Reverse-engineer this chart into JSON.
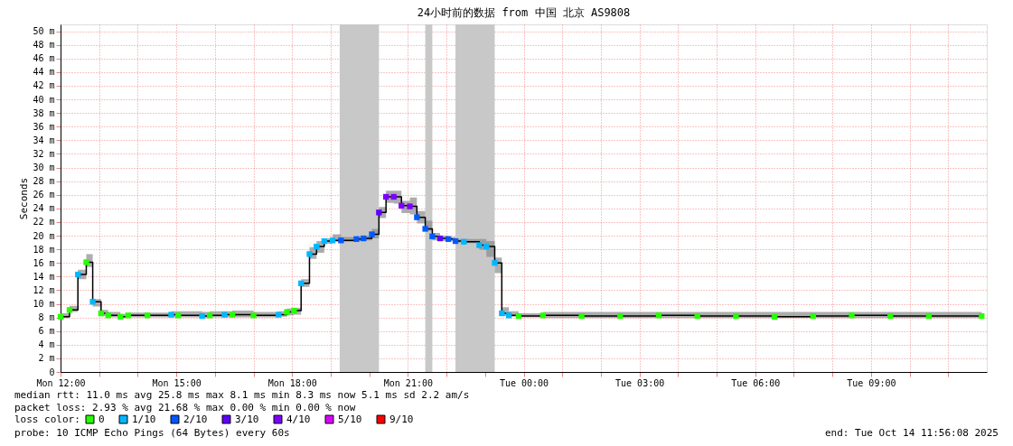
{
  "chart_data": {
    "type": "step",
    "title": "24小时前的数据 from 中国 北京 AS9808",
    "ylabel": "Seconds",
    "legend_title": "loss color:",
    "legend": "bottom",
    "grid": true,
    "x": [
      "2025-10-13T12:00",
      "2025-10-13T12:14",
      "2025-10-13T12:27",
      "2025-10-13T12:40",
      "2025-10-13T12:50",
      "2025-10-13T13:03",
      "2025-10-13T13:14",
      "2025-10-13T13:33",
      "2025-10-13T13:45",
      "2025-10-13T14:15",
      "2025-10-13T14:52",
      "2025-10-13T15:03",
      "2025-10-13T15:40",
      "2025-10-13T15:52",
      "2025-10-13T16:15",
      "2025-10-13T16:27",
      "2025-10-13T17:00",
      "2025-10-13T17:39",
      "2025-10-13T17:52",
      "2025-10-13T18:03",
      "2025-10-13T18:14",
      "2025-10-13T18:27",
      "2025-10-13T18:38",
      "2025-10-13T18:50",
      "2025-10-13T19:03",
      "2025-10-13T19:16",
      "2025-10-13T19:40",
      "2025-10-13T19:51",
      "2025-10-13T20:04",
      "2025-10-13T20:15",
      "2025-10-13T20:26",
      "2025-10-13T20:38",
      "2025-10-13T20:50",
      "2025-10-13T21:03",
      "2025-10-13T21:14",
      "2025-10-13T21:27",
      "2025-10-13T21:38",
      "2025-10-13T21:50",
      "2025-10-13T22:03",
      "2025-10-13T22:14",
      "2025-10-13T22:27",
      "2025-10-13T22:51",
      "2025-10-13T23:02",
      "2025-10-13T23:15",
      "2025-10-13T23:26",
      "2025-10-13T23:37",
      "2025-10-13T23:52",
      "2025-10-14T00:30",
      "2025-10-14T01:30",
      "2025-10-14T02:30",
      "2025-10-14T03:30",
      "2025-10-14T04:30",
      "2025-10-14T05:30",
      "2025-10-14T06:30",
      "2025-10-14T07:30",
      "2025-10-14T08:30",
      "2025-10-14T09:30",
      "2025-10-14T10:30",
      "2025-10-14T11:52"
    ],
    "series": [
      {
        "color": "#000000",
        "values": [
          8.1,
          9.1,
          14.3,
          16.1,
          10.3,
          8.6,
          8.3,
          8.1,
          8.3,
          8.3,
          8.4,
          8.3,
          8.2,
          8.3,
          8.4,
          8.4,
          8.3,
          8.4,
          8.8,
          9.0,
          13.0,
          17.3,
          18.4,
          19.2,
          19.3,
          19.3,
          19.5,
          19.6,
          20.2,
          23.4,
          25.7,
          25.7,
          24.4,
          24.3,
          22.7,
          21.0,
          19.9,
          19.6,
          19.5,
          19.2,
          19.1,
          18.6,
          18.4,
          16.0,
          8.6,
          8.3,
          8.2,
          8.3,
          8.2,
          8.2,
          8.3,
          8.2,
          8.2,
          8.1,
          8.2,
          8.3,
          8.2,
          8.2,
          8.2
        ],
        "lower": [
          7.9,
          8.8,
          13.6,
          15.4,
          9.6,
          8.2,
          8.0,
          7.9,
          8.0,
          8.0,
          8.0,
          8.0,
          7.9,
          8.0,
          8.0,
          8.0,
          8.0,
          8.1,
          8.3,
          8.4,
          12.5,
          16.6,
          17.5,
          18.8,
          19.1,
          19.1,
          19.2,
          19.3,
          19.6,
          22.6,
          24.8,
          24.7,
          23.3,
          23.1,
          21.8,
          20.7,
          19.3,
          19.2,
          19.2,
          19.0,
          18.9,
          17.9,
          16.9,
          14.5,
          8.2,
          8.1,
          8.0,
          7.9,
          7.9,
          7.9,
          7.9,
          7.9,
          7.9,
          7.9,
          7.9,
          7.9,
          7.9,
          7.9,
          7.9
        ],
        "upper": [
          8.6,
          9.7,
          15.0,
          17.3,
          10.7,
          9.1,
          8.8,
          8.5,
          8.7,
          8.7,
          8.9,
          8.9,
          8.8,
          8.9,
          8.9,
          9.0,
          8.8,
          8.9,
          9.3,
          9.4,
          13.6,
          18.3,
          19.2,
          19.6,
          20.2,
          19.8,
          19.9,
          20.0,
          21.0,
          24.2,
          26.6,
          26.6,
          25.1,
          25.6,
          23.6,
          22.2,
          20.4,
          20.0,
          19.8,
          19.5,
          19.5,
          19.5,
          19.2,
          16.8,
          9.5,
          8.9,
          8.6,
          8.8,
          8.8,
          8.8,
          8.8,
          8.8,
          8.8,
          8.8,
          8.8,
          8.8,
          8.8,
          8.8,
          8.8
        ]
      },
      {
        "type": "scatter",
        "marker": "square",
        "name": "0",
        "color": "#26ff00",
        "values": [
          8.1,
          9.1,
          null,
          16.1,
          null,
          8.6,
          8.3,
          8.1,
          8.3,
          8.3,
          null,
          8.3,
          null,
          8.3,
          null,
          8.4,
          8.3,
          null,
          8.8,
          9.0,
          null,
          null,
          null,
          null,
          null,
          null,
          null,
          null,
          null,
          null,
          null,
          null,
          null,
          null,
          null,
          null,
          null,
          null,
          null,
          null,
          null,
          null,
          null,
          null,
          null,
          null,
          8.2,
          8.3,
          8.2,
          8.2,
          8.3,
          8.2,
          8.2,
          8.1,
          8.2,
          8.3,
          8.2,
          8.2,
          8.2
        ]
      },
      {
        "type": "scatter",
        "marker": "square",
        "name": "1/10",
        "color": "#00b8ff",
        "values": [
          null,
          null,
          14.3,
          null,
          10.3,
          null,
          null,
          null,
          null,
          null,
          8.4,
          null,
          8.2,
          null,
          8.4,
          null,
          null,
          8.4,
          null,
          null,
          13.0,
          17.3,
          18.4,
          19.2,
          19.3,
          null,
          null,
          null,
          null,
          null,
          null,
          null,
          null,
          null,
          null,
          null,
          null,
          null,
          null,
          null,
          19.1,
          18.6,
          18.4,
          16.0,
          8.6,
          8.3,
          null,
          null,
          null,
          null,
          null,
          null,
          null,
          null,
          null,
          null,
          null,
          null,
          null
        ]
      },
      {
        "type": "scatter",
        "marker": "square",
        "name": "2/10",
        "color": "#0059ff",
        "values": [
          null,
          null,
          null,
          null,
          null,
          null,
          null,
          null,
          null,
          null,
          null,
          null,
          null,
          null,
          null,
          null,
          null,
          null,
          null,
          null,
          null,
          null,
          null,
          null,
          null,
          19.3,
          19.5,
          19.6,
          20.2,
          null,
          null,
          null,
          null,
          null,
          22.7,
          21.0,
          19.9,
          null,
          19.5,
          19.2,
          null,
          null,
          null,
          null,
          null,
          null,
          null,
          null,
          null,
          null,
          null,
          null,
          null,
          null,
          null,
          null,
          null,
          null,
          null
        ]
      },
      {
        "type": "scatter",
        "marker": "square",
        "name": "3/10",
        "color": "#5e00ff",
        "values": [
          null,
          null,
          null,
          null,
          null,
          null,
          null,
          null,
          null,
          null,
          null,
          null,
          null,
          null,
          null,
          null,
          null,
          null,
          null,
          null,
          null,
          null,
          null,
          null,
          null,
          null,
          null,
          null,
          null,
          23.4,
          null,
          null,
          null,
          null,
          null,
          null,
          null,
          19.6,
          null,
          null,
          null,
          null,
          null,
          null,
          null,
          null,
          null,
          null,
          null,
          null,
          null,
          null,
          null,
          null,
          null,
          null,
          null,
          null,
          null
        ]
      },
      {
        "type": "scatter",
        "marker": "square",
        "name": "4/10",
        "color": "#7e00ff",
        "values": [
          null,
          null,
          null,
          null,
          null,
          null,
          null,
          null,
          null,
          null,
          null,
          null,
          null,
          null,
          null,
          null,
          null,
          null,
          null,
          null,
          null,
          null,
          null,
          null,
          null,
          null,
          null,
          null,
          null,
          null,
          25.7,
          25.7,
          24.4,
          24.3,
          null,
          null,
          null,
          null,
          null,
          null,
          null,
          null,
          null,
          null,
          null,
          null,
          null,
          null,
          null,
          null,
          null,
          null,
          null,
          null,
          null,
          null,
          null,
          null,
          null
        ]
      },
      {
        "type": "scatter",
        "marker": "square",
        "name": "5/10",
        "color": "#dd00ff",
        "values": [
          null,
          null,
          null,
          null,
          null,
          null,
          null,
          null,
          null,
          null,
          null,
          null,
          null,
          null,
          null,
          null,
          null,
          null,
          null,
          null,
          null,
          null,
          null,
          null,
          null,
          null,
          null,
          null,
          null,
          null,
          null,
          null,
          null,
          null,
          null,
          null,
          null,
          null,
          null,
          null,
          null,
          null,
          null,
          null,
          null,
          null,
          null,
          null,
          null,
          null,
          null,
          null,
          null,
          null,
          null,
          null,
          null,
          null,
          null
        ]
      },
      {
        "type": "scatter",
        "marker": "square",
        "name": "9/10",
        "color": "#ff0000",
        "values": [
          null,
          null,
          null,
          null,
          null,
          null,
          null,
          null,
          null,
          null,
          null,
          null,
          null,
          null,
          null,
          null,
          null,
          null,
          null,
          null,
          null,
          null,
          null,
          null,
          null,
          null,
          null,
          null,
          null,
          null,
          null,
          null,
          null,
          null,
          null,
          null,
          null,
          null,
          null,
          null,
          null,
          null,
          null,
          null,
          null,
          null,
          null,
          null,
          null,
          null,
          null,
          null,
          null,
          null,
          null,
          null,
          null,
          null,
          null
        ]
      }
    ],
    "bands": [
      {
        "axis": "x",
        "from": "2025-10-13T19:14",
        "to": "2025-10-13T20:15",
        "color": "#c8c8c8"
      },
      {
        "axis": "x",
        "from": "2025-10-13T21:27",
        "to": "2025-10-13T21:38",
        "color": "#c8c8c8"
      },
      {
        "axis": "x",
        "from": "2025-10-13T22:14",
        "to": "2025-10-13T23:15",
        "color": "#c8c8c8"
      }
    ],
    "xlim": [
      "2025-10-13T12:00",
      "2025-10-14T12:00"
    ],
    "xticks": [
      {
        "value": "2025-10-13T12:00",
        "label": "Mon 12:00"
      },
      {
        "value": "2025-10-13T13:00",
        "label": null
      },
      {
        "value": "2025-10-13T14:00",
        "label": null
      },
      {
        "value": "2025-10-13T15:00",
        "label": "Mon 15:00"
      },
      {
        "value": "2025-10-13T16:00",
        "label": null
      },
      {
        "value": "2025-10-13T17:00",
        "label": null
      },
      {
        "value": "2025-10-13T18:00",
        "label": "Mon 18:00"
      },
      {
        "value": "2025-10-13T19:00",
        "label": null
      },
      {
        "value": "2025-10-13T20:00",
        "label": null
      },
      {
        "value": "2025-10-13T21:00",
        "label": "Mon 21:00"
      },
      {
        "value": "2025-10-13T22:00",
        "label": null
      },
      {
        "value": "2025-10-13T23:00",
        "label": null
      },
      {
        "value": "2025-10-14T00:00",
        "label": "Tue 00:00"
      },
      {
        "value": "2025-10-14T01:00",
        "label": null
      },
      {
        "value": "2025-10-14T02:00",
        "label": null
      },
      {
        "value": "2025-10-14T03:00",
        "label": "Tue 03:00"
      },
      {
        "value": "2025-10-14T04:00",
        "label": null
      },
      {
        "value": "2025-10-14T05:00",
        "label": null
      },
      {
        "value": "2025-10-14T06:00",
        "label": "Tue 06:00"
      },
      {
        "value": "2025-10-14T07:00",
        "label": null
      },
      {
        "value": "2025-10-14T08:00",
        "label": null
      },
      {
        "value": "2025-10-14T09:00",
        "label": "Tue 09:00"
      },
      {
        "value": "2025-10-14T10:00",
        "label": null
      },
      {
        "value": "2025-10-14T11:00",
        "label": null
      }
    ],
    "ylim": [
      0,
      51
    ],
    "yticks": [
      0,
      {
        "value": 2,
        "label": "2 m"
      },
      {
        "value": 4,
        "label": "4 m"
      },
      {
        "value": 6,
        "label": "6 m"
      },
      {
        "value": 8,
        "label": "8 m"
      },
      {
        "value": 10,
        "label": "10 m"
      },
      {
        "value": 12,
        "label": "12 m"
      },
      {
        "value": 14,
        "label": "14 m"
      },
      {
        "value": 16,
        "label": "16 m"
      },
      {
        "value": 18,
        "label": "18 m"
      },
      {
        "value": 20,
        "label": "20 m"
      },
      {
        "value": 22,
        "label": "22 m"
      },
      {
        "value": 24,
        "label": "24 m"
      },
      {
        "value": 26,
        "label": "26 m"
      },
      {
        "value": 28,
        "label": "28 m"
      },
      {
        "value": 30,
        "label": "30 m"
      },
      {
        "value": 32,
        "label": "32 m"
      },
      {
        "value": 34,
        "label": "34 m"
      },
      {
        "value": 36,
        "label": "36 m"
      },
      {
        "value": 38,
        "label": "38 m"
      },
      {
        "value": 40,
        "label": "40 m"
      },
      {
        "value": 42,
        "label": "42 m"
      },
      {
        "value": 44,
        "label": "44 m"
      },
      {
        "value": 46,
        "label": "46 m"
      },
      {
        "value": 48,
        "label": "48 m"
      },
      {
        "value": 50,
        "label": "50 m"
      }
    ],
    "annotations": [
      "median rtt:  11.0 ms avg  25.8 ms max  8.1 ms min  8.3 ms now  5.1 ms sd  2.2   am/s",
      "packet loss: 2.93 % avg  21.68 % max  0.00 % min  0.00 % now",
      "probe:       10 ICMP Echo Pings (64 Bytes) every 60s",
      "end: Tue Oct 14 11:56:08 2025"
    ]
  }
}
